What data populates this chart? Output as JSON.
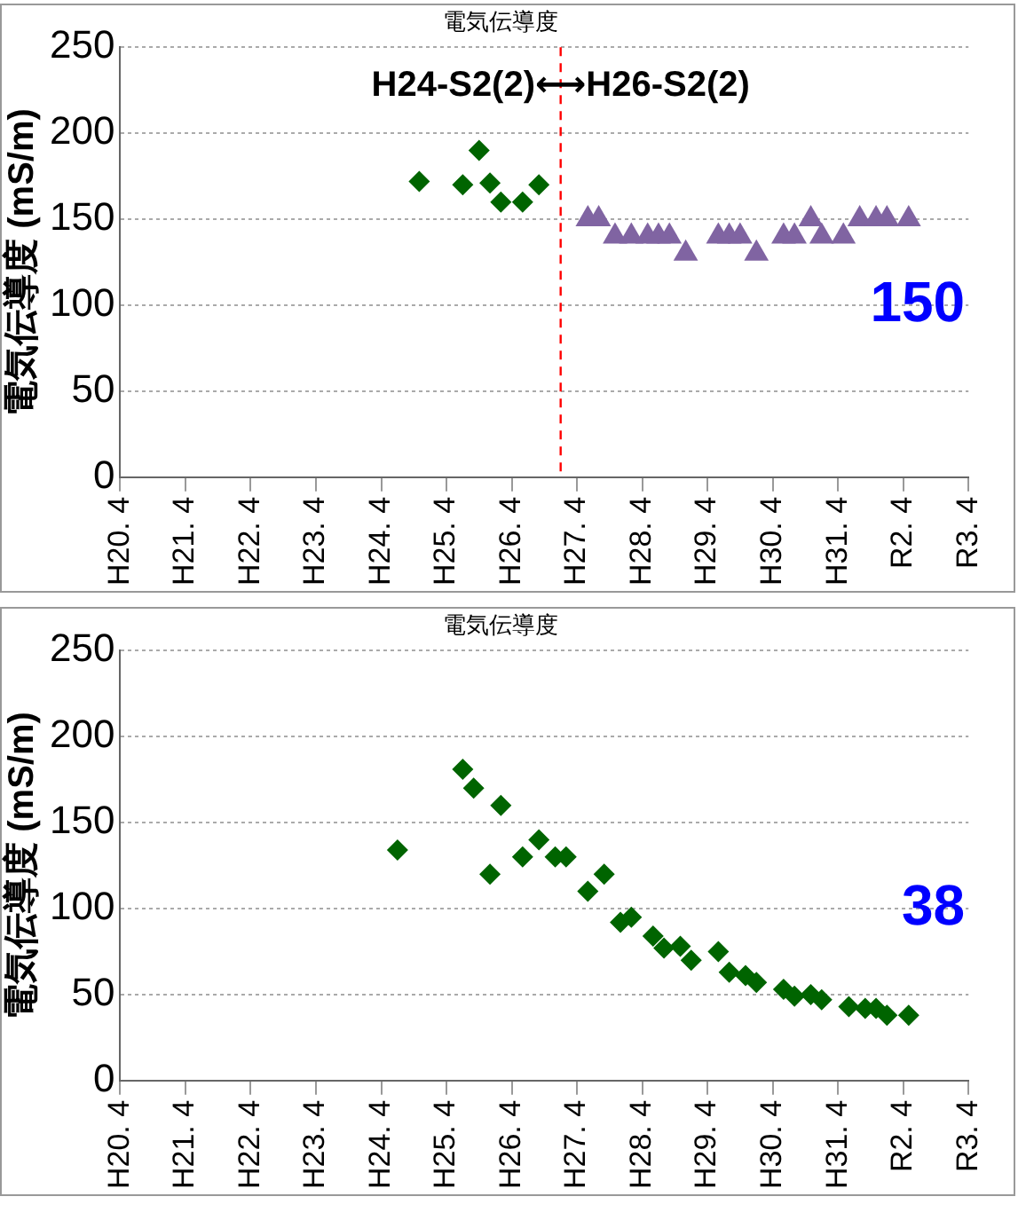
{
  "chart_data": [
    {
      "type": "scatter",
      "title": "電気伝導度",
      "ylabel": "電気伝導度 (mS/m)",
      "xlim": [
        "2008-04",
        "2021-04"
      ],
      "xticks": [
        {
          "value": "2008-04",
          "label": "H20. 4"
        },
        {
          "value": "2009-04",
          "label": "H21. 4"
        },
        {
          "value": "2010-04",
          "label": "H22. 4"
        },
        {
          "value": "2011-04",
          "label": "H23. 4"
        },
        {
          "value": "2012-04",
          "label": "H24. 4"
        },
        {
          "value": "2013-04",
          "label": "H25. 4"
        },
        {
          "value": "2014-04",
          "label": "H26. 4"
        },
        {
          "value": "2015-04",
          "label": "H27. 4"
        },
        {
          "value": "2016-04",
          "label": "H28. 4"
        },
        {
          "value": "2017-04",
          "label": "H29. 4"
        },
        {
          "value": "2018-04",
          "label": "H30. 4"
        },
        {
          "value": "2019-04",
          "label": "H31. 4"
        },
        {
          "value": "2020-04",
          "label": "R2. 4"
        },
        {
          "value": "2021-04",
          "label": "R3. 4"
        }
      ],
      "ylim": [
        0,
        250
      ],
      "yticks": [
        0,
        50,
        100,
        150,
        200,
        250
      ],
      "grid": "y",
      "series": [
        {
          "color": "#006400",
          "marker": "diamond",
          "x": [
            "2012-11",
            "2013-07",
            "2013-10",
            "2013-12",
            "2014-02",
            "2014-06",
            "2014-09"
          ],
          "values": [
            172,
            170,
            190,
            171,
            160,
            160,
            170
          ]
        },
        {
          "color": "#8064a2",
          "marker": "triangle",
          "x": [
            "2015-06",
            "2015-08",
            "2015-11",
            "2016-02",
            "2016-05",
            "2016-07",
            "2016-09",
            "2016-12",
            "2017-06",
            "2017-08",
            "2017-10",
            "2018-01",
            "2018-06",
            "2018-08",
            "2018-11",
            "2019-01",
            "2019-05",
            "2019-08",
            "2019-11",
            "2020-01",
            "2020-05"
          ],
          "values": [
            150,
            150,
            140,
            140,
            140,
            140,
            140,
            130,
            140,
            140,
            140,
            130,
            140,
            140,
            150,
            140,
            140,
            150,
            150,
            150,
            150
          ]
        }
      ],
      "ref_lines": [
        {
          "axis": "x",
          "value": "2015-01",
          "color": "#ff0000",
          "line_style": "dashed"
        }
      ],
      "annotations": [
        "H24-S2(2)⟷H26-S2(2)",
        "150"
      ]
    },
    {
      "type": "scatter",
      "title": "電気伝導度",
      "ylabel": "電気伝導度 (mS/m)",
      "xlim": [
        "2008-04",
        "2021-04"
      ],
      "xticks": [
        {
          "value": "2008-04",
          "label": "H20. 4"
        },
        {
          "value": "2009-04",
          "label": "H21. 4"
        },
        {
          "value": "2010-04",
          "label": "H22. 4"
        },
        {
          "value": "2011-04",
          "label": "H23. 4"
        },
        {
          "value": "2012-04",
          "label": "H24. 4"
        },
        {
          "value": "2013-04",
          "label": "H25. 4"
        },
        {
          "value": "2014-04",
          "label": "H26. 4"
        },
        {
          "value": "2015-04",
          "label": "H27. 4"
        },
        {
          "value": "2016-04",
          "label": "H28. 4"
        },
        {
          "value": "2017-04",
          "label": "H29. 4"
        },
        {
          "value": "2018-04",
          "label": "H30. 4"
        },
        {
          "value": "2019-04",
          "label": "H31. 4"
        },
        {
          "value": "2020-04",
          "label": "R2. 4"
        },
        {
          "value": "2021-04",
          "label": "R3. 4"
        }
      ],
      "ylim": [
        0,
        250
      ],
      "yticks": [
        0,
        50,
        100,
        150,
        200,
        250
      ],
      "grid": "y",
      "series": [
        {
          "color": "#006400",
          "marker": "diamond",
          "x": [
            "2012-07",
            "2013-07",
            "2013-09",
            "2013-12",
            "2014-02",
            "2014-06",
            "2014-09",
            "2014-12",
            "2015-02",
            "2015-06",
            "2015-09",
            "2015-12",
            "2016-02",
            "2016-06",
            "2016-08",
            "2016-11",
            "2017-01",
            "2017-06",
            "2017-08",
            "2017-11",
            "2018-01",
            "2018-06",
            "2018-08",
            "2018-11",
            "2019-01",
            "2019-06",
            "2019-09",
            "2019-11",
            "2020-01",
            "2020-05"
          ],
          "values": [
            134,
            181,
            170,
            120,
            160,
            130,
            140,
            130,
            130,
            110,
            120,
            92,
            95,
            84,
            77,
            78,
            70,
            75,
            63,
            61,
            57,
            53,
            49,
            50,
            47,
            43,
            42,
            42,
            38,
            38
          ]
        }
      ],
      "annotations": [
        "38"
      ]
    }
  ]
}
